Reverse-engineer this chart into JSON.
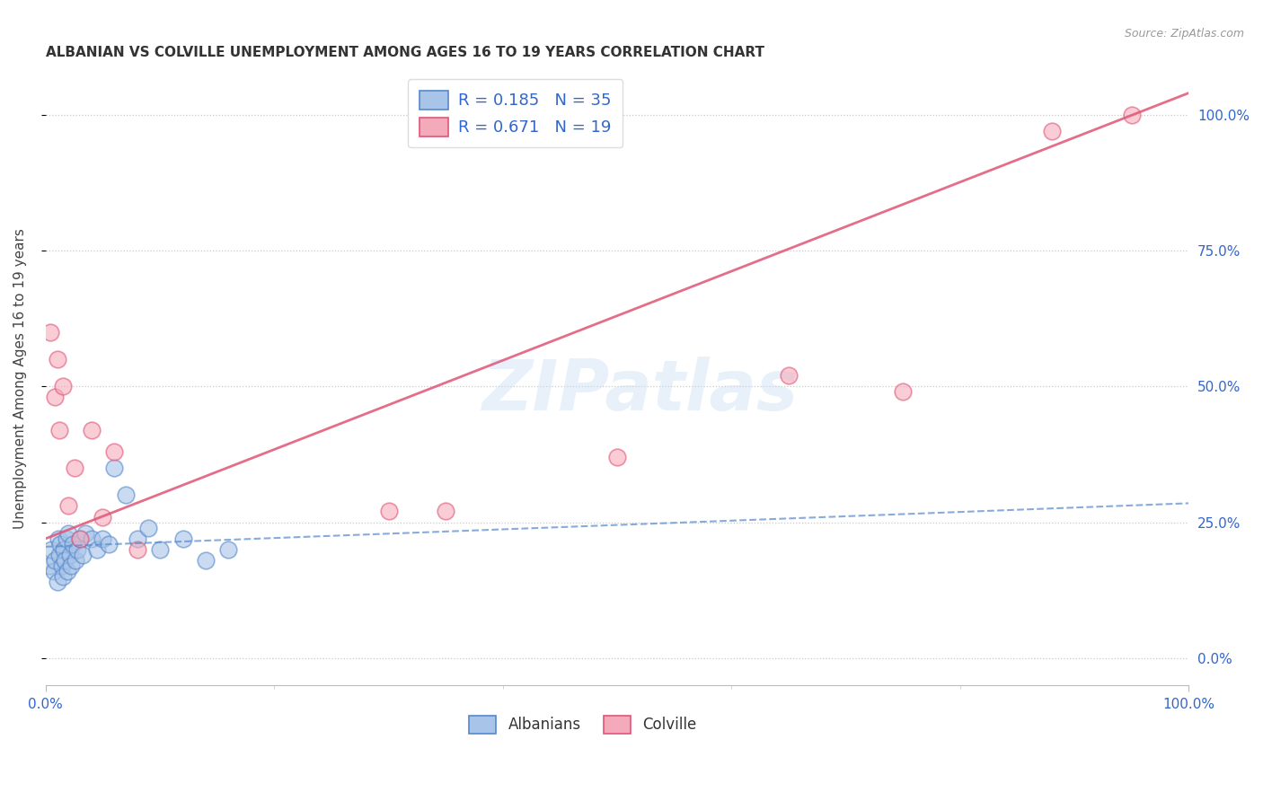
{
  "title": "ALBANIAN VS COLVILLE UNEMPLOYMENT AMONG AGES 16 TO 19 YEARS CORRELATION CHART",
  "source": "Source: ZipAtlas.com",
  "ylabel": "Unemployment Among Ages 16 to 19 years",
  "ytick_labels": [
    "0.0%",
    "25.0%",
    "50.0%",
    "75.0%",
    "100.0%"
  ],
  "ytick_values": [
    0,
    25,
    50,
    75,
    100
  ],
  "xtick_labels": [
    "0.0%",
    "100.0%"
  ],
  "xtick_values": [
    0,
    100
  ],
  "xlim": [
    0,
    100
  ],
  "ylim": [
    -5,
    108
  ],
  "legend_label1": "Albanians",
  "legend_label2": "Colville",
  "albanian_color": "#a8c4e8",
  "colville_color": "#f5aabb",
  "albanian_line_color": "#5588cc",
  "colville_line_color": "#e05575",
  "watermark": "ZIPatlas",
  "albanian_x": [
    0.3,
    0.5,
    0.7,
    0.8,
    1.0,
    1.1,
    1.2,
    1.3,
    1.4,
    1.5,
    1.6,
    1.7,
    1.8,
    1.9,
    2.0,
    2.1,
    2.2,
    2.4,
    2.6,
    2.8,
    3.0,
    3.2,
    3.5,
    4.0,
    4.5,
    5.0,
    5.5,
    6.0,
    7.0,
    8.0,
    9.0,
    10.0,
    12.0,
    14.0,
    16.0
  ],
  "albanian_y": [
    17,
    20,
    16,
    18,
    14,
    22,
    19,
    21,
    17,
    15,
    20,
    18,
    22,
    16,
    23,
    19,
    17,
    21,
    18,
    20,
    22,
    19,
    23,
    22,
    20,
    22,
    21,
    35,
    30,
    22,
    24,
    20,
    22,
    18,
    20
  ],
  "colville_x": [
    0.4,
    0.8,
    1.0,
    1.2,
    1.5,
    2.0,
    2.5,
    3.0,
    4.0,
    5.0,
    6.0,
    8.0,
    30.0,
    35.0,
    50.0,
    65.0,
    75.0,
    88.0,
    95.0
  ],
  "colville_y": [
    60,
    48,
    55,
    42,
    50,
    28,
    35,
    22,
    42,
    26,
    38,
    20,
    27,
    27,
    37,
    52,
    49,
    97,
    100
  ],
  "albanian_line_intercept": 20.5,
  "albanian_line_slope": 0.08,
  "colville_line_intercept": 22.0,
  "colville_line_slope": 0.82
}
